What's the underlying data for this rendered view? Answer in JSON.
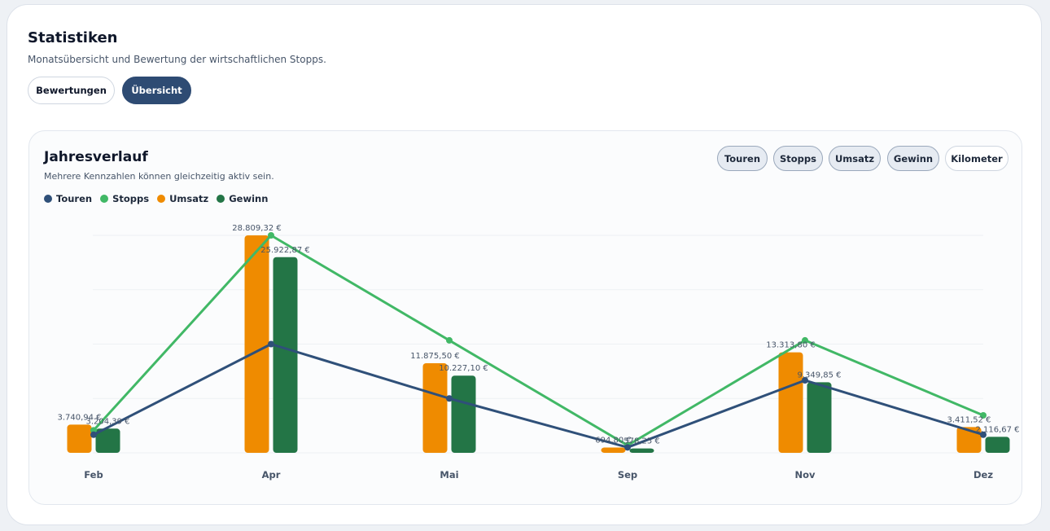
{
  "header": {
    "title": "Statistiken",
    "subtitle": "Monatsübersicht und Bewertung der wirtschaftlichen Stopps."
  },
  "view_tabs": [
    {
      "label": "Bewertungen",
      "active": false
    },
    {
      "label": "Übersicht",
      "active": true
    }
  ],
  "panel": {
    "title": "Jahresverlauf",
    "subtitle": "Mehrere Kennzahlen können gleichzeitig aktiv sein."
  },
  "metric_toggles": [
    {
      "label": "Touren",
      "active": true
    },
    {
      "label": "Stopps",
      "active": true
    },
    {
      "label": "Umsatz",
      "active": true
    },
    {
      "label": "Gewinn",
      "active": true
    },
    {
      "label": "Kilometer",
      "active": false
    }
  ],
  "colors": {
    "touren": "#2f5079",
    "stopps": "#41b866",
    "umsatz": "#ef8b00",
    "gewinn": "#237546",
    "active_tab": "#2e4b73"
  },
  "chart_data": {
    "type": "bar",
    "categories": [
      "Feb",
      "Apr",
      "Mai",
      "Sep",
      "Nov",
      "Dez"
    ],
    "series": [
      {
        "name": "Umsatz",
        "kind": "bar",
        "values": [
          3740.94,
          28809.32,
          11875.5,
          694.8,
          13313.8,
          3411.52
        ],
        "labels": [
          "3.740,94 €",
          "28.809,32 €",
          "11.875,50 €",
          "694,80 €",
          "13.313,80 €",
          "3.411,52 €"
        ]
      },
      {
        "name": "Gewinn",
        "kind": "bar",
        "values": [
          3204.39,
          25922.87,
          10227.1,
          578.25,
          9349.85,
          2116.67
        ],
        "labels": [
          "3.204,39 €",
          "25.922,87 €",
          "10.227,10 €",
          "578,25 €",
          "9.349,85 €",
          "2.116,67 €"
        ]
      },
      {
        "name": "Touren",
        "kind": "line",
        "values": [
          1,
          6,
          3,
          0.3,
          4,
          1
        ]
      },
      {
        "name": "Stopps",
        "kind": "line",
        "values": [
          3,
          29,
          15,
          1,
          15,
          5
        ]
      }
    ],
    "title": "Jahresverlauf",
    "xlabel": "",
    "ylabel": "",
    "grid": true,
    "legend": "top-left"
  }
}
